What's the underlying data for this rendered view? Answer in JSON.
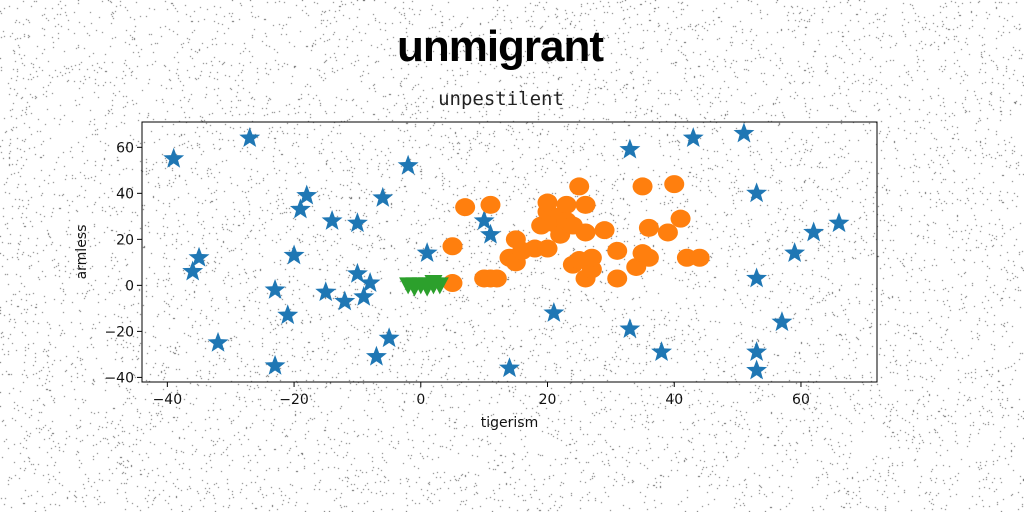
{
  "page": {
    "title": "unmigrant",
    "subtitle": "unpestilent"
  },
  "chart_data": {
    "type": "scatter",
    "title": "unmigrant",
    "subtitle": "unpestilent",
    "xlabel": "tigerism",
    "ylabel": "armless",
    "xlim": [
      -44,
      72
    ],
    "ylim": [
      -42,
      71
    ],
    "xticks": [
      -40,
      -20,
      0,
      20,
      40,
      60
    ],
    "yticks": [
      -40,
      -20,
      0,
      20,
      40,
      60
    ],
    "grid": false,
    "series": [
      {
        "marker": "star",
        "color": "#1f77b4",
        "points": [
          [
            -39,
            55
          ],
          [
            -27,
            64
          ],
          [
            -35,
            12
          ],
          [
            -36,
            6
          ],
          [
            -32,
            -25
          ],
          [
            -23,
            -2
          ],
          [
            -23,
            -35
          ],
          [
            -21,
            -13
          ],
          [
            -20,
            13
          ],
          [
            -19,
            33
          ],
          [
            -18,
            39
          ],
          [
            -15,
            -3
          ],
          [
            -14,
            28
          ],
          [
            -12,
            -7
          ],
          [
            -10,
            27
          ],
          [
            -10,
            5
          ],
          [
            -9,
            -5
          ],
          [
            -8,
            1
          ],
          [
            -7,
            -31
          ],
          [
            -5,
            -23
          ],
          [
            -6,
            38
          ],
          [
            -2,
            52
          ],
          [
            1,
            14
          ],
          [
            10,
            28
          ],
          [
            11,
            22
          ],
          [
            14,
            -36
          ],
          [
            21,
            -12
          ],
          [
            33,
            59
          ],
          [
            33,
            -19
          ],
          [
            38,
            -29
          ],
          [
            43,
            64
          ],
          [
            51,
            66
          ],
          [
            53,
            40
          ],
          [
            53,
            3
          ],
          [
            53,
            -29
          ],
          [
            53,
            -37
          ],
          [
            57,
            -16
          ],
          [
            59,
            14
          ],
          [
            62,
            23
          ],
          [
            66,
            27
          ]
        ]
      },
      {
        "marker": "circle",
        "color": "#ff7f0e",
        "points": [
          [
            5,
            17
          ],
          [
            5,
            1
          ],
          [
            7,
            34
          ],
          [
            10,
            3
          ],
          [
            11,
            3
          ],
          [
            12,
            3
          ],
          [
            11,
            35
          ],
          [
            14,
            12
          ],
          [
            15,
            20
          ],
          [
            15,
            10
          ],
          [
            16,
            15
          ],
          [
            18,
            16
          ],
          [
            19,
            26
          ],
          [
            20,
            32
          ],
          [
            20,
            36
          ],
          [
            20,
            16
          ],
          [
            21,
            27
          ],
          [
            22,
            22
          ],
          [
            22,
            30
          ],
          [
            23,
            35
          ],
          [
            23,
            28
          ],
          [
            24,
            9
          ],
          [
            24,
            26
          ],
          [
            25,
            43
          ],
          [
            25,
            11
          ],
          [
            26,
            35
          ],
          [
            26,
            23
          ],
          [
            26,
            3
          ],
          [
            27,
            7
          ],
          [
            27,
            12
          ],
          [
            29,
            24
          ],
          [
            31,
            15
          ],
          [
            31,
            3
          ],
          [
            34,
            8
          ],
          [
            35,
            14
          ],
          [
            35,
            43
          ],
          [
            36,
            12
          ],
          [
            36,
            25
          ],
          [
            39,
            23
          ],
          [
            40,
            44
          ],
          [
            41,
            29
          ],
          [
            42,
            12
          ],
          [
            44,
            12
          ]
        ]
      },
      {
        "marker": "triangle-down",
        "color": "#2ca02c",
        "points": [
          [
            -2,
            0
          ],
          [
            -1,
            0
          ],
          [
            0,
            0
          ],
          [
            1,
            0
          ],
          [
            2,
            0
          ],
          [
            3,
            0
          ],
          [
            -1,
            -1
          ],
          [
            1,
            -1
          ],
          [
            2,
            1
          ]
        ]
      }
    ]
  }
}
